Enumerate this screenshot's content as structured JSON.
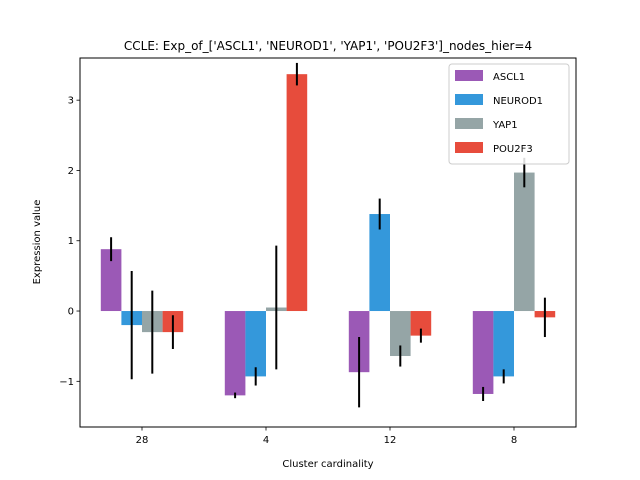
{
  "chart_data": {
    "type": "bar",
    "title": "CCLE: Exp_of_['ASCL1', 'NEUROD1', 'YAP1', 'POU2F3']_nodes_hier=4",
    "xlabel": "Cluster cardinality",
    "ylabel": "Expression value",
    "categories": [
      "28",
      "4",
      "12",
      "8"
    ],
    "ylim": [
      -1.65,
      3.6
    ],
    "yticks": [
      -1,
      0,
      1,
      2,
      3
    ],
    "ytick_labels": [
      "−1",
      "0",
      "1",
      "2",
      "3"
    ],
    "legend_position": "top-right",
    "grid": false,
    "series": [
      {
        "name": "ASCL1",
        "color": "#9b59b6",
        "values": [
          0.88,
          -1.2,
          -0.87,
          -1.18
        ],
        "errors": [
          0.17,
          0.04,
          0.5,
          0.1
        ]
      },
      {
        "name": "NEUROD1",
        "color": "#3498db",
        "values": [
          -0.2,
          -0.93,
          1.38,
          -0.93
        ],
        "errors": [
          0.77,
          0.13,
          0.22,
          0.1
        ]
      },
      {
        "name": "YAP1",
        "color": "#95a5a6",
        "values": [
          -0.3,
          0.05,
          -0.64,
          1.97
        ],
        "errors": [
          0.59,
          0.88,
          0.15,
          0.21
        ]
      },
      {
        "name": "POU2F3",
        "color": "#e74c3c",
        "values": [
          -0.3,
          3.37,
          -0.35,
          -0.09
        ],
        "errors": [
          0.24,
          0.16,
          0.1,
          0.28
        ]
      }
    ]
  }
}
